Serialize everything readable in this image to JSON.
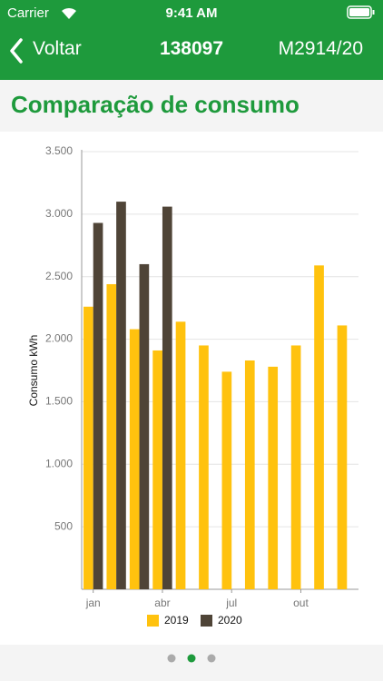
{
  "status_bar": {
    "carrier": "Carrier",
    "time": "9:41 AM"
  },
  "nav": {
    "back": "Voltar",
    "title": "138097",
    "right": "M2914/20"
  },
  "heading": "Comparação de consumo",
  "chart_data": {
    "type": "bar",
    "y_label": "Consumo kWh",
    "categories": [
      "jan",
      null,
      null,
      "abr",
      null,
      null,
      "jul",
      null,
      null,
      "out",
      null,
      null
    ],
    "series": [
      {
        "name": "2019",
        "color": "#ffc20e",
        "values": [
          2260,
          2440,
          2080,
          1910,
          2140,
          1950,
          1740,
          1830,
          1780,
          1950,
          2590,
          2110
        ]
      },
      {
        "name": "2020",
        "color": "#4f4437",
        "values": [
          2930,
          3100,
          2600,
          3060,
          null,
          null,
          null,
          null,
          null,
          null,
          null,
          null
        ]
      }
    ],
    "ylim": [
      0,
      3500
    ],
    "yticks": [
      500,
      {
        "value": 1000,
        "label": "1.000"
      },
      {
        "value": 1500,
        "label": "1.500"
      },
      {
        "value": 2000,
        "label": "2.000"
      },
      {
        "value": 2500,
        "label": "2.500"
      },
      {
        "value": 3000,
        "label": "3.000"
      },
      {
        "value": 3500,
        "label": "3.500"
      }
    ],
    "grid": true
  }
}
